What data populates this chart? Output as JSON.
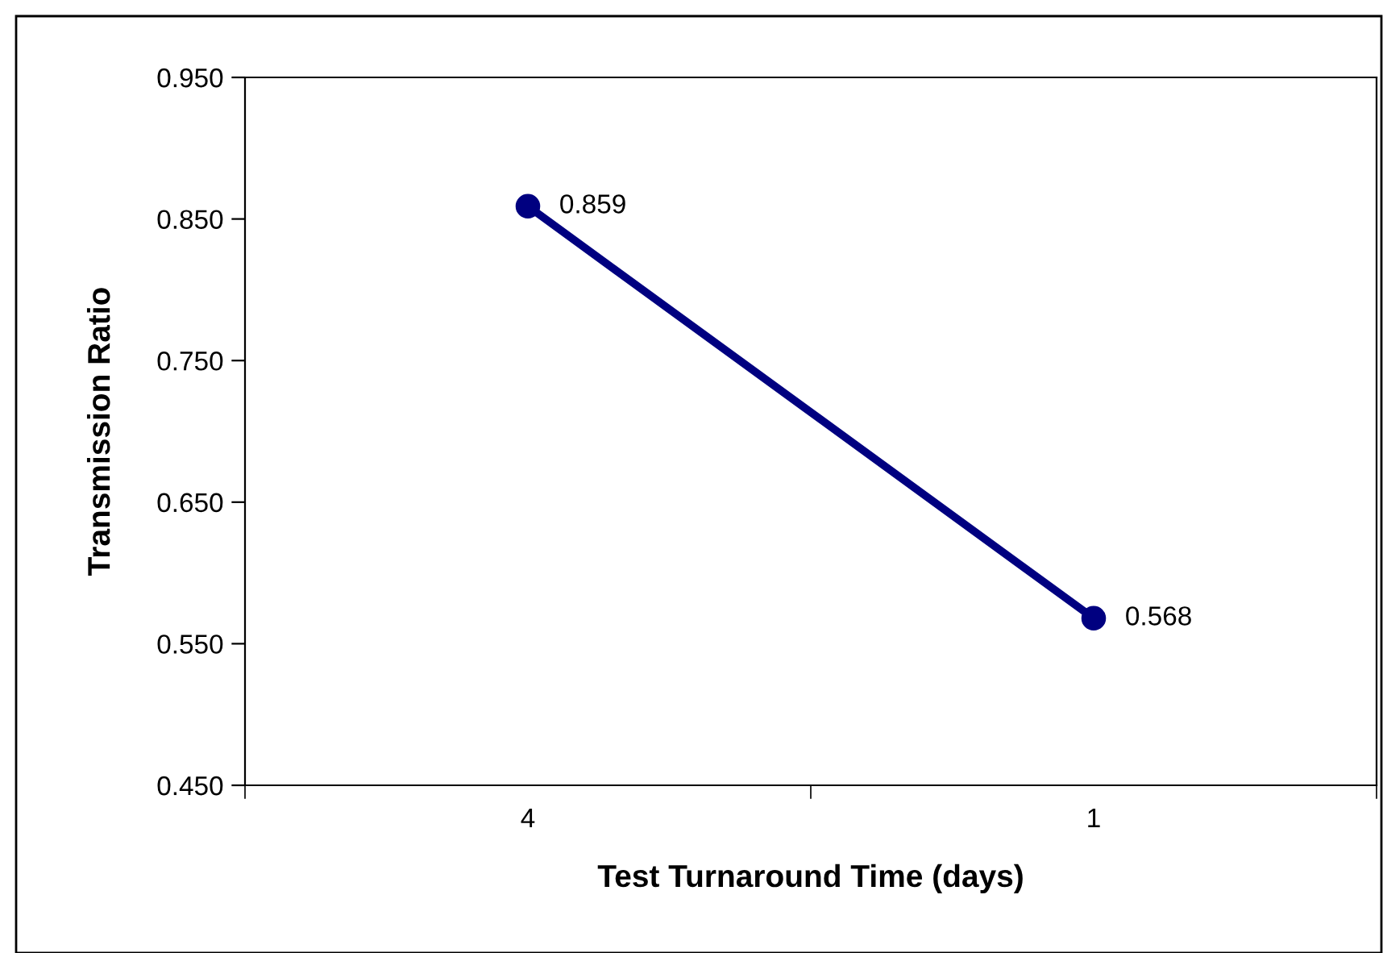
{
  "chart_data": {
    "type": "line",
    "xlabel": "Test Turnaround Time (days)",
    "ylabel": "Transmission Ratio",
    "categories": [
      "4",
      "1"
    ],
    "series": [
      {
        "color": "#000080",
        "values": [
          0.859,
          0.568
        ]
      }
    ],
    "ylim": [
      0.45,
      0.95
    ],
    "yticks": [
      {
        "value": 0.45,
        "label": "0.450"
      },
      {
        "value": 0.55,
        "label": "0.550"
      },
      {
        "value": 0.65,
        "label": "0.650"
      },
      {
        "value": 0.75,
        "label": "0.750"
      },
      {
        "value": 0.85,
        "label": "0.850"
      },
      {
        "value": 0.95,
        "label": "0.950"
      }
    ],
    "marker": "circle",
    "line_style": "solid",
    "data_labels": true,
    "grid": false,
    "legend": false
  }
}
